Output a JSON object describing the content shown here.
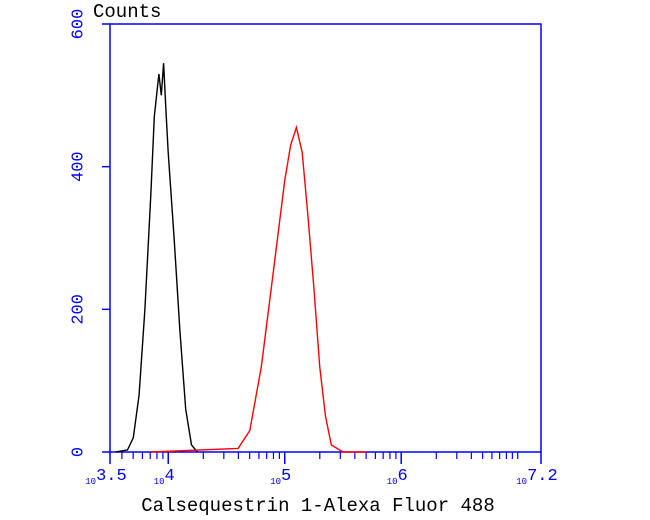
{
  "chart_data": {
    "type": "line",
    "title": "Counts",
    "x_label": "Calsequestrin 1-Alexa Fluor 488",
    "xscale": "log",
    "xlim": [
      3162.28,
      15848932
    ],
    "xticks": [
      {
        "value": 3162.28,
        "label": "10",
        "sup": "3.5"
      },
      {
        "value": 10000,
        "label": "10",
        "sup": "4"
      },
      {
        "value": 100000,
        "label": "10",
        "sup": "5"
      },
      {
        "value": 1000000,
        "label": "10",
        "sup": "6"
      },
      {
        "value": 15848932,
        "label": "10",
        "sup": "7.2"
      }
    ],
    "minor_xticks": [
      4000,
      5000,
      6000,
      7000,
      8000,
      9000,
      20000,
      30000,
      40000,
      50000,
      60000,
      70000,
      80000,
      90000,
      200000,
      300000,
      400000,
      500000,
      600000,
      700000,
      800000,
      900000,
      2000000,
      3000000,
      4000000,
      5000000,
      6000000,
      7000000,
      8000000,
      9000000,
      10000000
    ],
    "ylim": [
      0,
      600
    ],
    "yticks": [
      0,
      200,
      400,
      600
    ],
    "axis_color": "#0000ff",
    "series": [
      {
        "color": "#000000",
        "x": [
          3548,
          4467,
          5012,
          5623,
          6310,
          7079,
          7586,
          8318,
          8710,
          9120,
          9550,
          10000,
          11220,
          12589,
          14125,
          15849,
          17783
        ],
        "values": [
          0,
          3,
          20,
          80,
          200,
          360,
          470,
          530,
          500,
          545,
          480,
          420,
          300,
          170,
          60,
          10,
          0
        ]
      },
      {
        "color": "#ff0000",
        "x": [
          7079,
          39811,
          50119,
          63096,
          79433,
          100000,
          112202,
          125893,
          141254,
          158489,
          177828,
          199526,
          223872,
          251189,
          316228,
          501187
        ],
        "values": [
          0,
          5,
          30,
          120,
          250,
          380,
          430,
          455,
          420,
          330,
          230,
          120,
          50,
          10,
          0,
          0
        ]
      }
    ]
  }
}
